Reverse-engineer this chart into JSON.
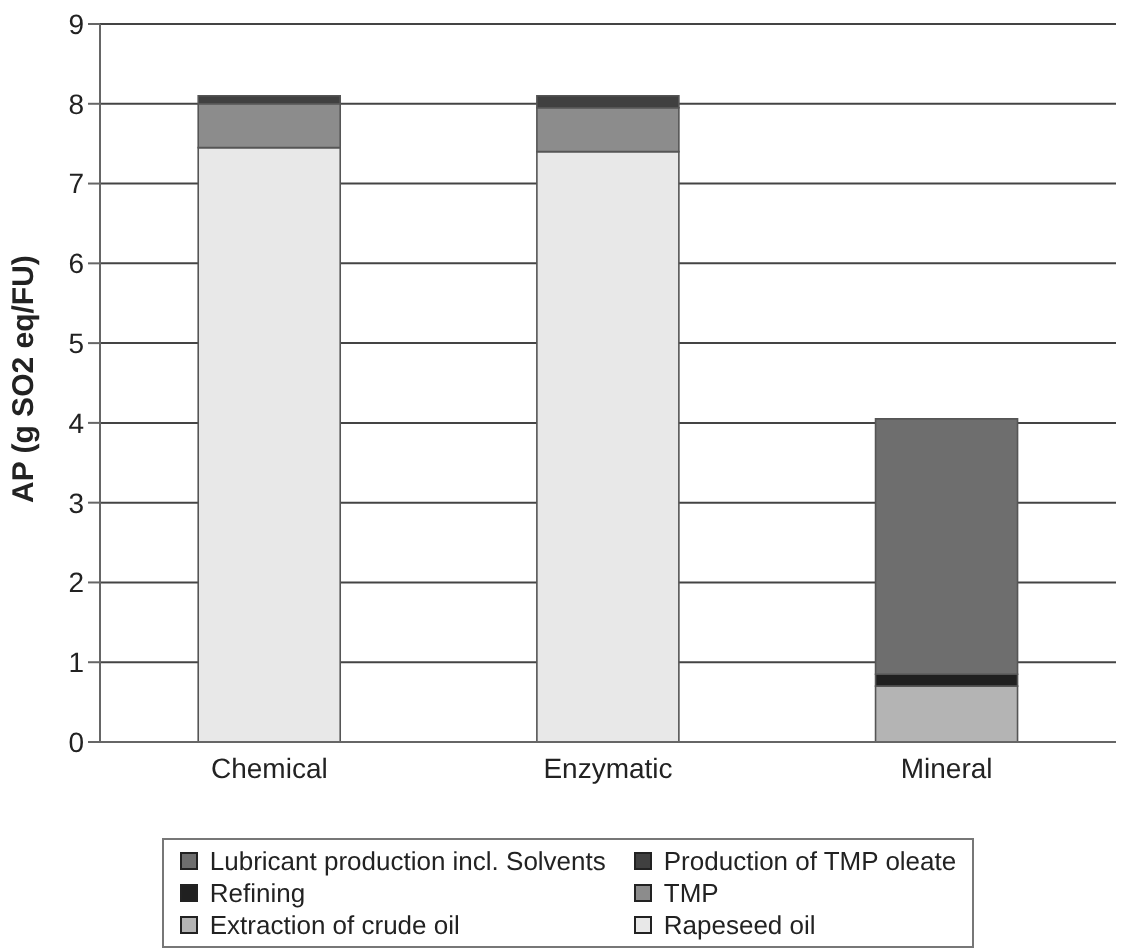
{
  "chart_data": {
    "type": "bar",
    "stacked": true,
    "ylabel": "AP (g SO2 eq/FU)",
    "categories": [
      "Chemical",
      "Enzymatic",
      "Mineral"
    ],
    "series": [
      {
        "name": "Rapeseed oil",
        "color": "#e8e8e8",
        "values": [
          7.45,
          7.4,
          0
        ]
      },
      {
        "name": "TMP",
        "color": "#8c8c8c",
        "values": [
          0.55,
          0.55,
          0
        ]
      },
      {
        "name": "Production of TMP oleate",
        "color": "#404040",
        "values": [
          0.1,
          0.15,
          0
        ]
      },
      {
        "name": "Extraction of crude oil",
        "color": "#b4b4b4",
        "values": [
          0,
          0,
          0.7
        ]
      },
      {
        "name": "Refining",
        "color": "#202020",
        "values": [
          0,
          0,
          0.15
        ]
      },
      {
        "name": "Lubricant production incl. Solvents",
        "color": "#6e6e6e",
        "values": [
          0,
          0,
          3.2
        ]
      }
    ],
    "ylim": [
      0,
      9
    ],
    "yticks": [
      0,
      1,
      2,
      3,
      4,
      5,
      6,
      7,
      8,
      9
    ],
    "grid": "y",
    "legend": "bottom"
  }
}
